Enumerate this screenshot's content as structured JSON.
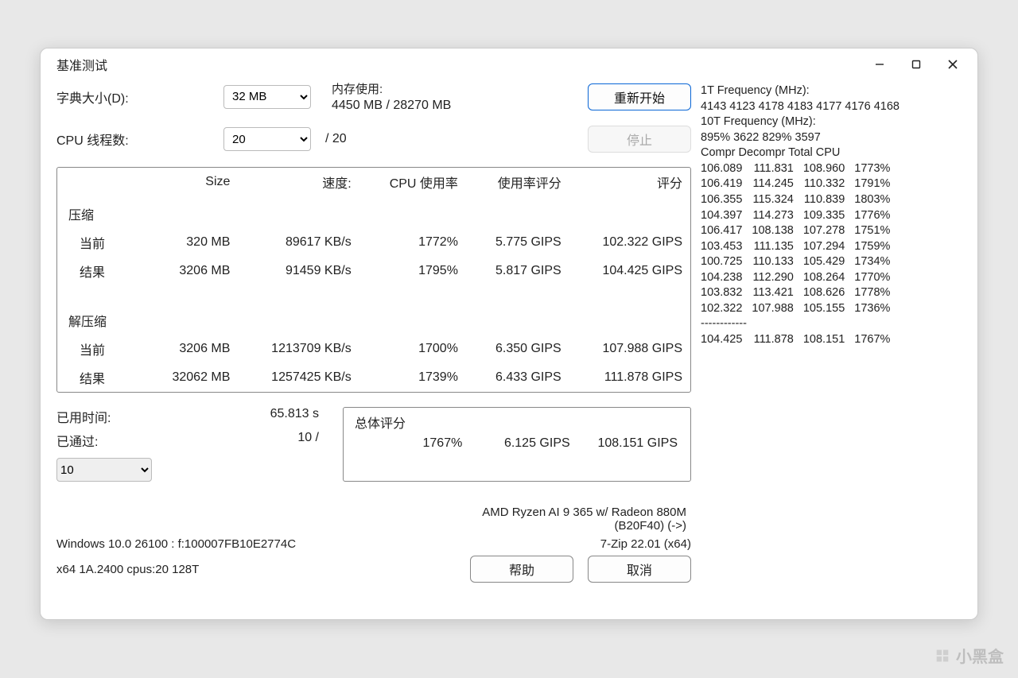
{
  "window": {
    "title": "基准测试"
  },
  "controls": {
    "dict_label": "字典大小(D):",
    "dict_value": "32 MB",
    "threads_label": "CPU 线程数:",
    "threads_value": "20",
    "threads_denom": "/ 20",
    "mem_label": "内存使用:",
    "mem_value": "4450 MB / 28270 MB",
    "restart": "重新开始",
    "stop": "停止"
  },
  "headers": {
    "size": "Size",
    "speed": "速度:",
    "cpu": "CPU 使用率",
    "rating_usage": "使用率评分",
    "rating": "评分"
  },
  "sections": {
    "compress": "压缩",
    "decompress": "解压缩",
    "current": "当前",
    "result": "结果"
  },
  "rows": {
    "c_cur": {
      "size": "320 MB",
      "speed": "89617 KB/s",
      "cpu": "1772%",
      "ru": "5.775 GIPS",
      "rating": "102.322 GIPS"
    },
    "c_res": {
      "size": "3206 MB",
      "speed": "91459 KB/s",
      "cpu": "1795%",
      "ru": "5.817 GIPS",
      "rating": "104.425 GIPS"
    },
    "d_cur": {
      "size": "3206 MB",
      "speed": "1213709 KB/s",
      "cpu": "1700%",
      "ru": "6.350 GIPS",
      "rating": "107.988 GIPS"
    },
    "d_res": {
      "size": "32062 MB",
      "speed": "1257425 KB/s",
      "cpu": "1739%",
      "ru": "6.433 GIPS",
      "rating": "111.878 GIPS"
    }
  },
  "elapsed": {
    "label": "已用时间:",
    "value": "65.813 s"
  },
  "passed": {
    "label": "已通过:",
    "value": "10 /",
    "select": "10"
  },
  "overall": {
    "title": "总体评分",
    "cpu": "1767%",
    "ru": "6.125 GIPS",
    "rating": "108.151 GIPS"
  },
  "sysinfo": {
    "cpu_line1": "AMD Ryzen AI 9 365 w/ Radeon 880M",
    "cpu_line2": "(B20F40) (->)",
    "os": "Windows 10.0 26100 : f:100007FB10E2774C",
    "zip": "7-Zip 22.01 (x64)",
    "arch": "x64 1A.2400 cpus:20 128T",
    "help": "帮助",
    "cancel": "取消"
  },
  "log": {
    "t1_label": "1T Frequency (MHz):",
    "t1_values": " 4143 4123 4178 4183 4177 4176 4168",
    "t10_label": "10T Frequency (MHz):",
    "t10_values": " 895% 3622 829% 3597",
    "header": "Compr Decompr Total   CPU",
    "rows": [
      [
        "106.089",
        "111.831",
        "108.960",
        "1773%"
      ],
      [
        "106.419",
        "114.245",
        "110.332",
        "1791%"
      ],
      [
        "106.355",
        "115.324",
        "110.839",
        "1803%"
      ],
      [
        "104.397",
        "114.273",
        "109.335",
        "1776%"
      ],
      [
        "106.417",
        "108.138",
        "107.278",
        "1751%"
      ],
      [
        "103.453",
        "111.135",
        "107.294",
        "1759%"
      ],
      [
        "100.725",
        "110.133",
        "105.429",
        "1734%"
      ],
      [
        "104.238",
        "112.290",
        "108.264",
        "1770%"
      ],
      [
        "103.832",
        "113.421",
        "108.626",
        "1778%"
      ],
      [
        "102.322",
        "107.988",
        "105.155",
        "1736%"
      ]
    ],
    "sep": "------------",
    "avg": [
      "104.425",
      "111.878",
      "108.151",
      "1767%"
    ]
  },
  "watermark": "小黑盒"
}
